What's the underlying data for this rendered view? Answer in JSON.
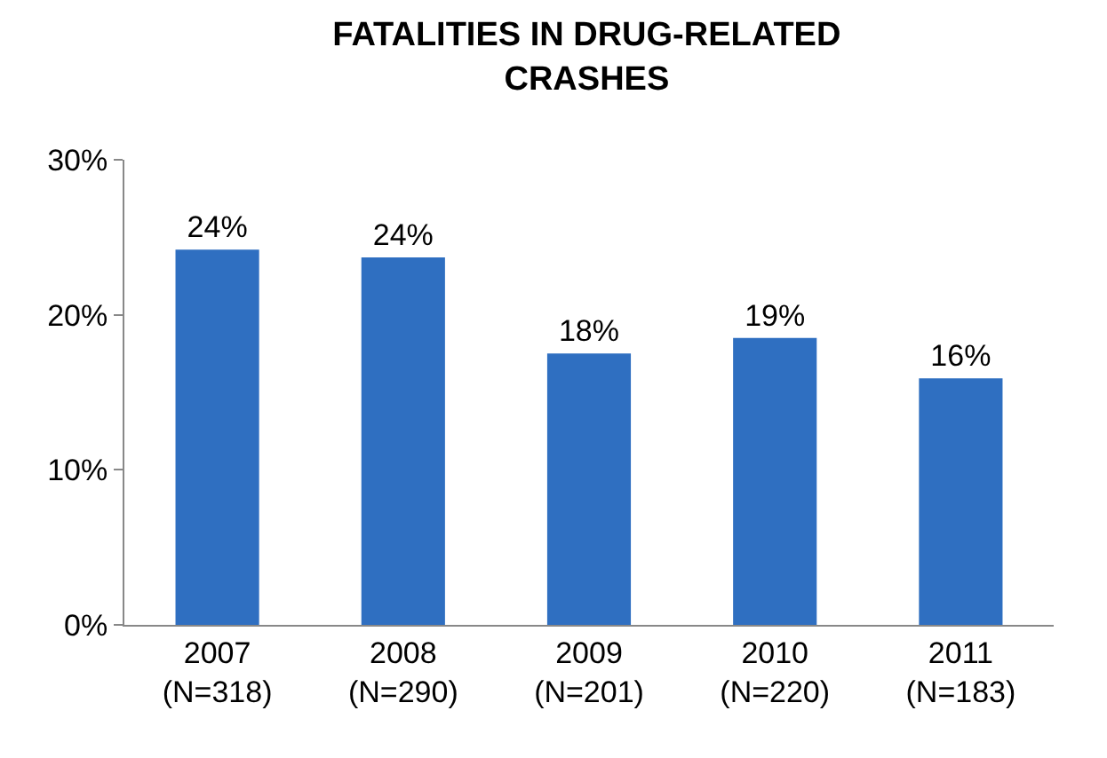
{
  "chart_data": {
    "type": "bar",
    "title": "FATALITIES IN DRUG-RELATED\nCRASHES",
    "categories": [
      "2007\n(N=318)",
      "2008\n(N=290)",
      "2009\n(N=201)",
      "2010\n(N=220)",
      "2011\n(N=183)"
    ],
    "values": [
      24.2,
      23.7,
      17.5,
      18.5,
      15.9
    ],
    "value_labels": [
      "24%",
      "24%",
      "18%",
      "19%",
      "16%"
    ],
    "color": "#2f6fc1",
    "ylim": [
      0,
      30
    ],
    "yticks": [
      {
        "value": 0,
        "label": "0%"
      },
      {
        "value": 10,
        "label": "10%"
      },
      {
        "value": 20,
        "label": "20%"
      },
      {
        "value": 30,
        "label": "30%"
      }
    ],
    "legend": false
  }
}
